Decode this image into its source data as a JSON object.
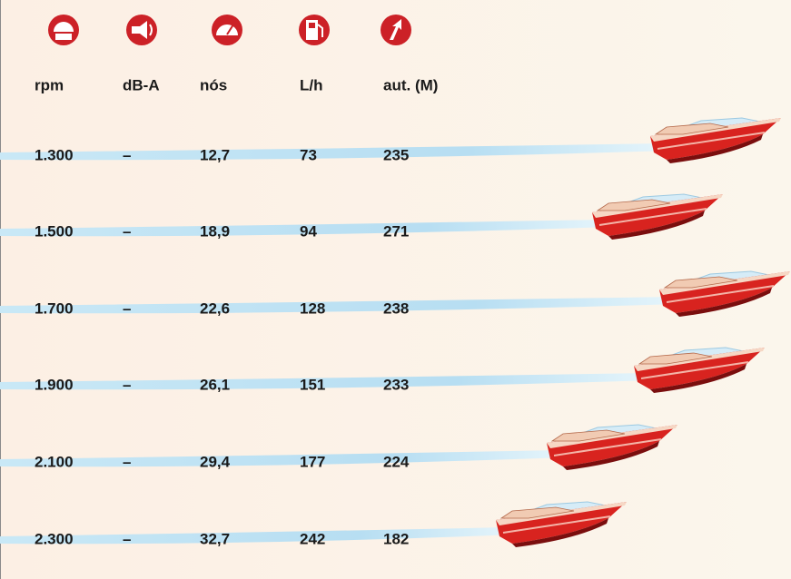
{
  "table": {
    "headers": [
      "rpm",
      "dB-A",
      "nós",
      "L/h",
      "aut. (M)"
    ],
    "rows": [
      [
        "1.300",
        "–",
        "12,7",
        "73",
        "235"
      ],
      [
        "1.500",
        "–",
        "18,9",
        "94",
        "271"
      ],
      [
        "1.700",
        "–",
        "22,6",
        "128",
        "238"
      ],
      [
        "1.900",
        "–",
        "26,1",
        "151",
        "233"
      ],
      [
        "2.100",
        "–",
        "29,4",
        "177",
        "224"
      ],
      [
        "2.300",
        "–",
        "32,7",
        "242",
        "182"
      ]
    ]
  }
}
